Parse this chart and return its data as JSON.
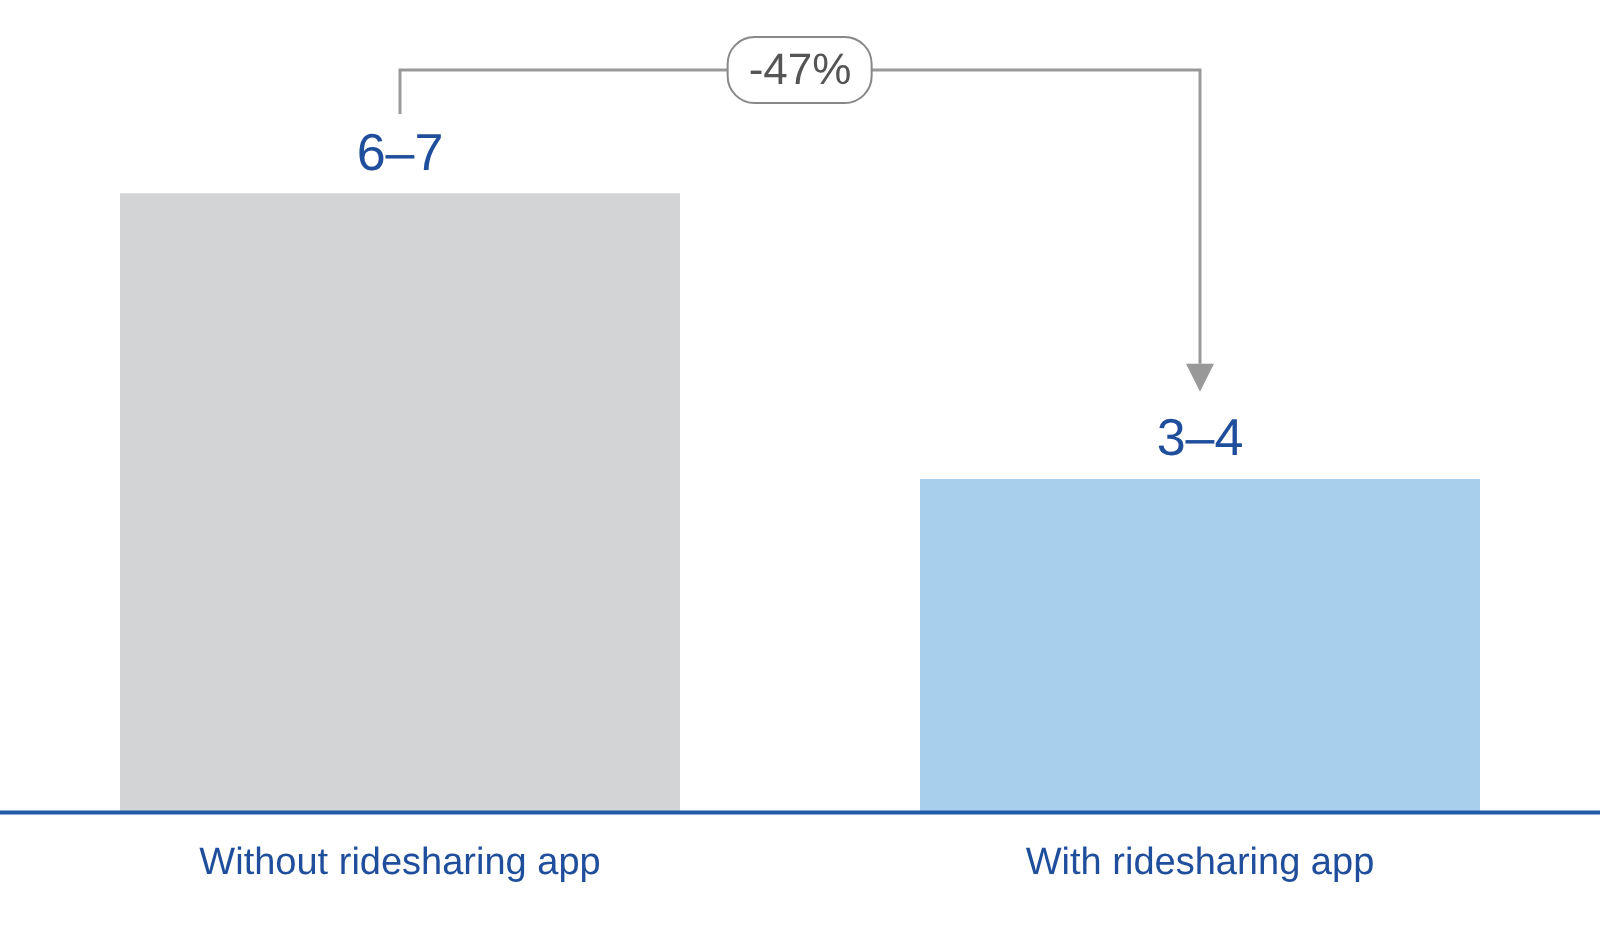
{
  "chart_data": {
    "type": "bar",
    "tick_labels": "x",
    "categories": [
      "Without ridesharing app",
      "With ridesharing app"
    ],
    "values": [
      6.5,
      3.5
    ],
    "colors": [
      "#d3d4d6",
      "#a8cfec"
    ],
    "value_labels": [
      "6–7",
      "3–4"
    ],
    "annotations": [
      "-47%"
    ],
    "legend": false,
    "grid": false
  }
}
